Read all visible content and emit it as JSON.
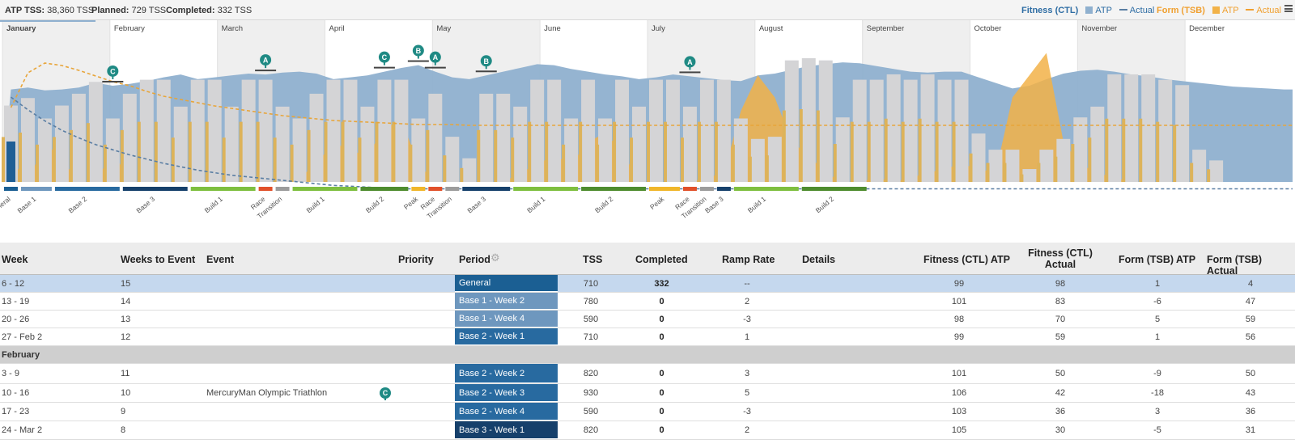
{
  "summary": {
    "atp_tss_label": "ATP TSS:",
    "atp_tss_value": "38,360 TSS",
    "planned_label": "Planned:",
    "planned_value": "729 TSS",
    "completed_label": "Completed:",
    "completed_value": "332 TSS"
  },
  "legend": {
    "fitness_label": "Fitness (CTL)",
    "fitness_atp": "ATP",
    "fitness_actual": "Actual",
    "form_label": "Form (TSB)",
    "form_atp": "ATP",
    "form_actual": "Actual"
  },
  "colors": {
    "ctl_area": "#8fb0cf",
    "tsb_area": "#f2b248",
    "bar_gray": "#d4d4d6",
    "bar_gold": "#ddb35a",
    "trophy": "#1f8a84",
    "selected_row": "#c5d8ee",
    "general": "#1b5f93",
    "base1": "#6e97be",
    "base2": "#286aa0",
    "base3": "#16406b",
    "build1": "#7ebf3f",
    "build2": "#4e8c2e",
    "race": "#e1502a",
    "transition": "#9c9c9c",
    "peak": "#f0b62a"
  },
  "chart_data": {
    "type": "bar",
    "title": "",
    "months": [
      "January",
      "February",
      "March",
      "April",
      "May",
      "June",
      "July",
      "August",
      "September",
      "October",
      "November",
      "December"
    ],
    "weekly_tss_planned": [
      710,
      780,
      590,
      710,
      820,
      930,
      590,
      820,
      950,
      950,
      700,
      950,
      950,
      700,
      950,
      950,
      700,
      590,
      820,
      950,
      950,
      700,
      950,
      950,
      590,
      820,
      420,
      220,
      820,
      820,
      700,
      950,
      950,
      590,
      950,
      590,
      950,
      700,
      950,
      950,
      700,
      950,
      950,
      590,
      400,
      420,
      1130,
      1150,
      1130,
      600,
      950,
      950,
      1000,
      950,
      1000,
      950,
      950,
      450,
      300,
      300,
      120,
      300,
      400,
      600,
      700,
      1000,
      1000,
      1000,
      950,
      900,
      300,
      200,
      0,
      0,
      0,
      0
    ],
    "series": [
      {
        "name": "Fitness (CTL) ATP",
        "kind": "area",
        "values": [
          99,
          101,
          98,
          99,
          101,
          106,
          103,
          105,
          108,
          112,
          115,
          110,
          112,
          114,
          116,
          115,
          117,
          118,
          116,
          110,
          112,
          114,
          118,
          122,
          125,
          118,
          112,
          110,
          114,
          118,
          122,
          126,
          125,
          121,
          118,
          115,
          113,
          110,
          112,
          115,
          113,
          111,
          109,
          108,
          114,
          116,
          120,
          124,
          126,
          128,
          127,
          124,
          121,
          118,
          117,
          118,
          118,
          112,
          106,
          100,
          103,
          110,
          116,
          119,
          120,
          118,
          115,
          113,
          110,
          108,
          106,
          104,
          102,
          101,
          100,
          99
        ]
      },
      {
        "name": "Form (TSB) ATP",
        "kind": "area",
        "values": [
          1,
          -6,
          5,
          1,
          -9,
          -18,
          3,
          -5,
          -8,
          -10,
          -7,
          -9,
          -8,
          -6,
          -7,
          -8,
          -5,
          -3,
          0,
          5,
          3,
          2,
          8,
          10,
          0,
          -10,
          -8,
          -7,
          -6,
          -5,
          -2,
          0,
          2,
          0,
          5,
          7,
          3,
          -5,
          -9,
          -8,
          -5,
          -3,
          -2,
          12,
          20,
          15,
          5,
          2,
          -2,
          -4,
          -5,
          -3,
          -4,
          -3,
          -2,
          -1,
          0,
          -1,
          -2,
          15,
          20,
          25,
          5,
          0,
          -2,
          -3,
          -6,
          -8,
          -7,
          -6,
          -5,
          -5,
          -5,
          -5,
          -5,
          -5
        ]
      },
      {
        "name": "Fitness (CTL) Actual",
        "kind": "line",
        "values": [
          98,
          83,
          70,
          59,
          50,
          42,
          36,
          30,
          25,
          20,
          16,
          12,
          9,
          6,
          4,
          2,
          0,
          -2,
          -4,
          -6,
          -7,
          -8,
          -9,
          -10,
          -10,
          -10,
          -10,
          -10,
          -10,
          -10,
          -10,
          -10,
          -10,
          -10,
          -10,
          -10,
          -10,
          -10,
          -10,
          -10,
          -10,
          -10,
          -10,
          -10,
          -10,
          -10,
          -10,
          -10,
          -10,
          -10,
          -10,
          -10,
          -10,
          -10,
          -10,
          -10,
          -10,
          -10,
          -10,
          -10,
          -10,
          -10,
          -10,
          -10,
          -10,
          -10,
          -10,
          -10,
          -10,
          -10,
          -10,
          -10,
          -10,
          -10,
          -10,
          -10
        ]
      },
      {
        "name": "Form (TSB) Actual",
        "kind": "line",
        "values": [
          4,
          47,
          59,
          56,
          50,
          43,
          36,
          31,
          24,
          18,
          14,
          10,
          6,
          3,
          0,
          -3,
          -6,
          -8,
          -10,
          -12,
          -13,
          -14,
          -15,
          -16,
          -17,
          -17,
          -17,
          -18,
          -18,
          -18,
          -18,
          -18,
          -18,
          -18,
          -18,
          -18,
          -18,
          -18,
          -18,
          -18,
          -18,
          -18,
          -18,
          -18,
          -18,
          -18,
          -18,
          -18,
          -18,
          -18,
          -18,
          -18,
          -18,
          -18,
          -18,
          -18,
          -18,
          -18,
          -18,
          -18,
          -18,
          -18,
          -18,
          -18,
          -18,
          -18,
          -18,
          -18,
          -18,
          -18,
          -18,
          -18,
          -18,
          -18,
          -18,
          -18
        ]
      }
    ],
    "events": [
      {
        "priority": "C",
        "week": 6
      },
      {
        "priority": "A",
        "week": 15
      },
      {
        "priority": "C",
        "week": 22
      },
      {
        "priority": "B",
        "week": 24
      },
      {
        "priority": "A",
        "week": 25
      },
      {
        "priority": "B",
        "week": 28
      },
      {
        "priority": "A",
        "week": 40
      }
    ],
    "periods": [
      {
        "label": "General",
        "color_key": "general",
        "start": 0,
        "weeks": 1
      },
      {
        "label": "Base 1",
        "color_key": "base1",
        "start": 1,
        "weeks": 2
      },
      {
        "label": "Base 2",
        "color_key": "base2",
        "start": 3,
        "weeks": 4
      },
      {
        "label": "Base 3",
        "color_key": "base3",
        "start": 7,
        "weeks": 4
      },
      {
        "label": "Build 1",
        "color_key": "build1",
        "start": 11,
        "weeks": 4
      },
      {
        "label": "Race",
        "color_key": "race",
        "start": 15,
        "weeks": 1
      },
      {
        "label": "Transition",
        "color_key": "transition",
        "start": 16,
        "weeks": 1
      },
      {
        "label": "Build 1",
        "color_key": "build1",
        "start": 17,
        "weeks": 4
      },
      {
        "label": "Build 2",
        "color_key": "build2",
        "start": 21,
        "weeks": 3
      },
      {
        "label": "Peak",
        "color_key": "peak",
        "start": 24,
        "weeks": 1
      },
      {
        "label": "Race",
        "color_key": "race",
        "start": 25,
        "weeks": 1
      },
      {
        "label": "Transition",
        "color_key": "transition",
        "start": 26,
        "weeks": 1
      },
      {
        "label": "Base 3",
        "color_key": "base3",
        "start": 27,
        "weeks": 3
      },
      {
        "label": "Build 1",
        "color_key": "build1",
        "start": 30,
        "weeks": 4
      },
      {
        "label": "Build 2",
        "color_key": "build2",
        "start": 34,
        "weeks": 4
      },
      {
        "label": "Peak",
        "color_key": "peak",
        "start": 38,
        "weeks": 2
      },
      {
        "label": "Race",
        "color_key": "race",
        "start": 40,
        "weeks": 1
      },
      {
        "label": "Transition",
        "color_key": "transition",
        "start": 41,
        "weeks": 1
      },
      {
        "label": "Base 3",
        "color_key": "base3",
        "start": 42,
        "weeks": 1
      },
      {
        "label": "Build 1",
        "color_key": "build1",
        "start": 43,
        "weeks": 4
      },
      {
        "label": "Build 2",
        "color_key": "build2",
        "start": 47,
        "weeks": 4
      }
    ]
  },
  "table": {
    "headers": {
      "week": "Week",
      "weeks_to_event": "Weeks to Event",
      "event": "Event",
      "priority": "Priority",
      "period": "Period",
      "tss": "TSS",
      "completed": "Completed",
      "ramp_rate": "Ramp Rate",
      "details": "Details",
      "ctl_atp": "Fitness (CTL) ATP",
      "ctl_actual_1": "Fitness (CTL)",
      "ctl_actual_2": "Actual",
      "tsb_atp": "Form (TSB) ATP",
      "tsb_actual": "Form (TSB) Actual"
    },
    "rows": [
      {
        "type": "week",
        "week": "6 - 12",
        "weeks_to_event": "15",
        "event": "",
        "priority": "",
        "period": "General",
        "period_color": "#1b5f93",
        "tss": "710",
        "completed": "332",
        "ramp": "--",
        "ctl_atp": "99",
        "ctl_actual": "98",
        "tsb_atp": "1",
        "tsb_actual": "4",
        "selected": true
      },
      {
        "type": "week",
        "week": "13 - 19",
        "weeks_to_event": "14",
        "event": "",
        "priority": "",
        "period": "Base 1 - Week 2",
        "period_color": "#6e97be",
        "tss": "780",
        "completed": "0",
        "ramp": "2",
        "ctl_atp": "101",
        "ctl_actual": "83",
        "tsb_atp": "-6",
        "tsb_actual": "47"
      },
      {
        "type": "week",
        "week": "20 - 26",
        "weeks_to_event": "13",
        "event": "",
        "priority": "",
        "period": "Base 1 - Week 4",
        "period_color": "#6e97be",
        "tss": "590",
        "completed": "0",
        "ramp": "-3",
        "ctl_atp": "98",
        "ctl_actual": "70",
        "tsb_atp": "5",
        "tsb_actual": "59"
      },
      {
        "type": "week",
        "week": "27 - Feb 2",
        "weeks_to_event": "12",
        "event": "",
        "priority": "",
        "period": "Base 2 - Week 1",
        "period_color": "#286aa0",
        "tss": "710",
        "completed": "0",
        "ramp": "1",
        "ctl_atp": "99",
        "ctl_actual": "59",
        "tsb_atp": "1",
        "tsb_actual": "56"
      },
      {
        "type": "month",
        "label": "February"
      },
      {
        "type": "week",
        "week": "3 - 9",
        "weeks_to_event": "11",
        "event": "",
        "priority": "",
        "period": "Base 2 - Week 2",
        "period_color": "#286aa0",
        "tss": "820",
        "completed": "0",
        "ramp": "3",
        "ctl_atp": "101",
        "ctl_actual": "50",
        "tsb_atp": "-9",
        "tsb_actual": "50"
      },
      {
        "type": "week",
        "week": "10 - 16",
        "weeks_to_event": "10",
        "event": "MercuryMan Olympic Triathlon",
        "priority": "C",
        "period": "Base 2 - Week 3",
        "period_color": "#286aa0",
        "tss": "930",
        "completed": "0",
        "ramp": "5",
        "ctl_atp": "106",
        "ctl_actual": "42",
        "tsb_atp": "-18",
        "tsb_actual": "43"
      },
      {
        "type": "week",
        "week": "17 - 23",
        "weeks_to_event": "9",
        "event": "",
        "priority": "",
        "period": "Base 2 - Week 4",
        "period_color": "#286aa0",
        "tss": "590",
        "completed": "0",
        "ramp": "-3",
        "ctl_atp": "103",
        "ctl_actual": "36",
        "tsb_atp": "3",
        "tsb_actual": "36"
      },
      {
        "type": "week",
        "week": "24 - Mar 2",
        "weeks_to_event": "8",
        "event": "",
        "priority": "",
        "period": "Base 3 - Week 1",
        "period_color": "#16406b",
        "tss": "820",
        "completed": "0",
        "ramp": "2",
        "ctl_atp": "105",
        "ctl_actual": "30",
        "tsb_atp": "-5",
        "tsb_actual": "31"
      }
    ]
  }
}
